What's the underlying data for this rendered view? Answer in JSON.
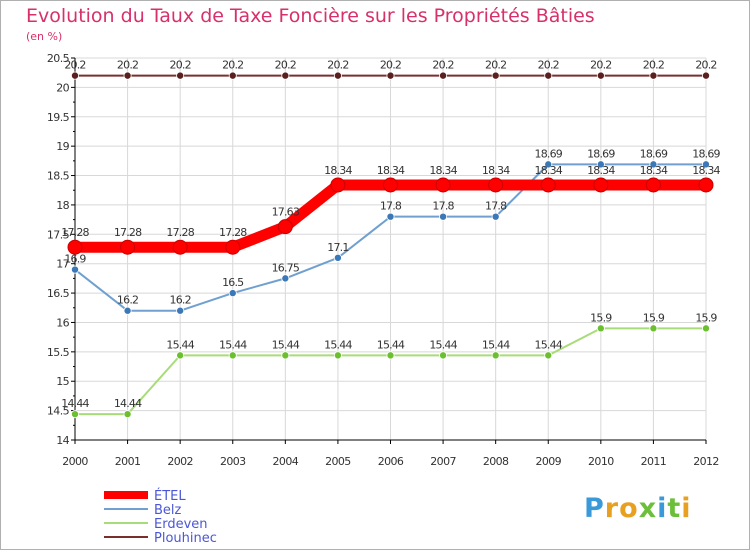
{
  "chart_data": {
    "type": "line",
    "title": "Evolution du Taux de Taxe Foncière sur les Propriétés Bâties",
    "subtitle": "(en %)",
    "x": [
      "2000",
      "2001",
      "2002",
      "2003",
      "2004",
      "2005",
      "2006",
      "2007",
      "2008",
      "2009",
      "2010",
      "2011",
      "2012"
    ],
    "ylim": [
      14,
      20.5
    ],
    "yticks": [
      "14",
      "14.5",
      "15",
      "15.5",
      "16",
      "16.5",
      "17",
      "17.5",
      "18",
      "18.5",
      "19",
      "19.5",
      "20",
      "20.5"
    ],
    "grid": true,
    "legend_position": "bottom-left",
    "series": [
      {
        "name": "Plouhinec",
        "color": "#7a2f2f",
        "values": [
          20.2,
          20.2,
          20.2,
          20.2,
          20.2,
          20.2,
          20.2,
          20.2,
          20.2,
          20.2,
          20.2,
          20.2,
          20.2
        ],
        "labels": [
          "20.2",
          "20.2",
          "20.2",
          "20.2",
          "20.2",
          "20.2",
          "20.2",
          "20.2",
          "20.2",
          "20.2",
          "20.2",
          "20.2",
          "20.2"
        ]
      },
      {
        "name": "Erdeven",
        "color": "#a8dc78",
        "values": [
          14.44,
          14.44,
          15.44,
          15.44,
          15.44,
          15.44,
          15.44,
          15.44,
          15.44,
          15.44,
          15.9,
          15.9,
          15.9
        ],
        "labels": [
          "14.44",
          "14.44",
          "15.44",
          "15.44",
          "15.44",
          "15.44",
          "15.44",
          "15.44",
          "15.44",
          "15.44",
          "15.9",
          "15.9",
          "15.9"
        ]
      },
      {
        "name": "Belz",
        "color": "#6fa0d0",
        "values": [
          16.9,
          16.2,
          16.2,
          16.5,
          16.75,
          17.1,
          17.8,
          17.8,
          17.8,
          18.69,
          18.69,
          18.69,
          18.69
        ],
        "labels": [
          "16.9",
          "16.2",
          "16.2",
          "16.5",
          "16.75",
          "17.1",
          "17.8",
          "17.8",
          "17.8",
          "18.69",
          "18.69",
          "18.69",
          "18.69"
        ]
      },
      {
        "name": "ÉTEL",
        "color": "#ff0000",
        "values": [
          17.28,
          17.28,
          17.28,
          17.28,
          17.63,
          18.34,
          18.34,
          18.34,
          18.34,
          18.34,
          18.34,
          18.34,
          18.34
        ],
        "labels": [
          "17.28",
          "17.28",
          "17.28",
          "17.28",
          "17.63",
          "18.34",
          "18.34",
          "18.34",
          "18.34",
          "18.34",
          "18.34",
          "18.34",
          "18.34"
        ]
      }
    ],
    "legend": [
      "ÉTEL",
      "Belz",
      "Erdeven",
      "Plouhinec"
    ]
  },
  "branding": {
    "logo_text": "Proxiti",
    "logo_letters": [
      "P",
      "r",
      "o",
      "x",
      "i",
      "t",
      "i"
    ],
    "logo_colors": [
      "#3a9ad9",
      "#e8a020",
      "#e8a020",
      "#6cbf3a",
      "#3a9ad9",
      "#6cbf3a",
      "#e8a020"
    ]
  }
}
